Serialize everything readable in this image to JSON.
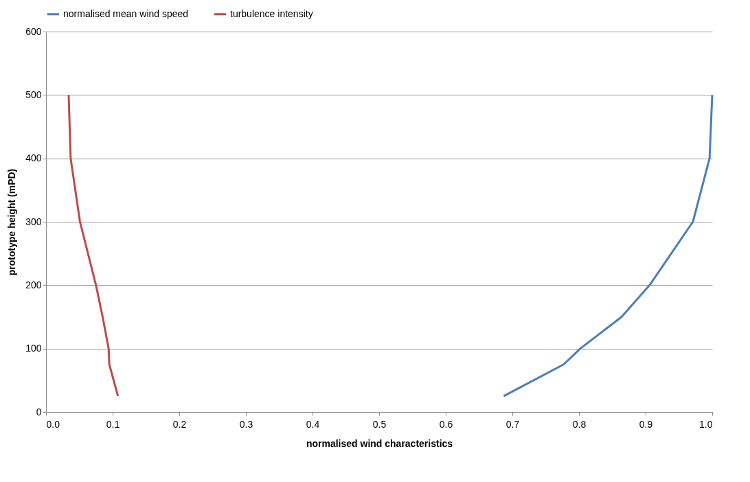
{
  "chart_data": {
    "type": "line",
    "xlabel": "normalised wind characteristics",
    "ylabel": "prototype height (mPD)",
    "xlim": [
      0,
      1
    ],
    "xticks": [
      {
        "value": 0,
        "label": "0.0"
      },
      {
        "value": 0.1,
        "label": "0.1"
      },
      {
        "value": 0.2,
        "label": "0.2"
      },
      {
        "value": 0.3,
        "label": "0.3"
      },
      {
        "value": 0.4,
        "label": "0.4"
      },
      {
        "value": 0.5,
        "label": "0.5"
      },
      {
        "value": 0.6,
        "label": "0.6"
      },
      {
        "value": 0.7,
        "label": "0.7"
      },
      {
        "value": 0.8,
        "label": "0.8"
      },
      {
        "value": 0.9,
        "label": "0.9"
      },
      {
        "value": 1,
        "label": "1.0"
      }
    ],
    "ylim": [
      0,
      600
    ],
    "yticks": [
      0,
      100,
      200,
      300,
      400,
      500,
      600
    ],
    "grid": "y",
    "legend": "top",
    "marker": "none",
    "line_style": "solid",
    "series": [
      {
        "name": "normalised mean wind speed",
        "color": "#4a7ebb",
        "x": [
          0.687,
          0.777,
          0.802,
          0.864,
          0.906,
          0.971,
          0.996,
          1.0
        ],
        "values": [
          25,
          75,
          100,
          150,
          200,
          300,
          400,
          500
        ]
      },
      {
        "name": "turbulence intensity",
        "color": "#be4b48",
        "x": [
          0.108,
          0.095,
          0.094,
          0.085,
          0.075,
          0.051,
          0.037,
          0.034
        ],
        "values": [
          25,
          75,
          100,
          150,
          200,
          300,
          400,
          500
        ]
      }
    ]
  }
}
